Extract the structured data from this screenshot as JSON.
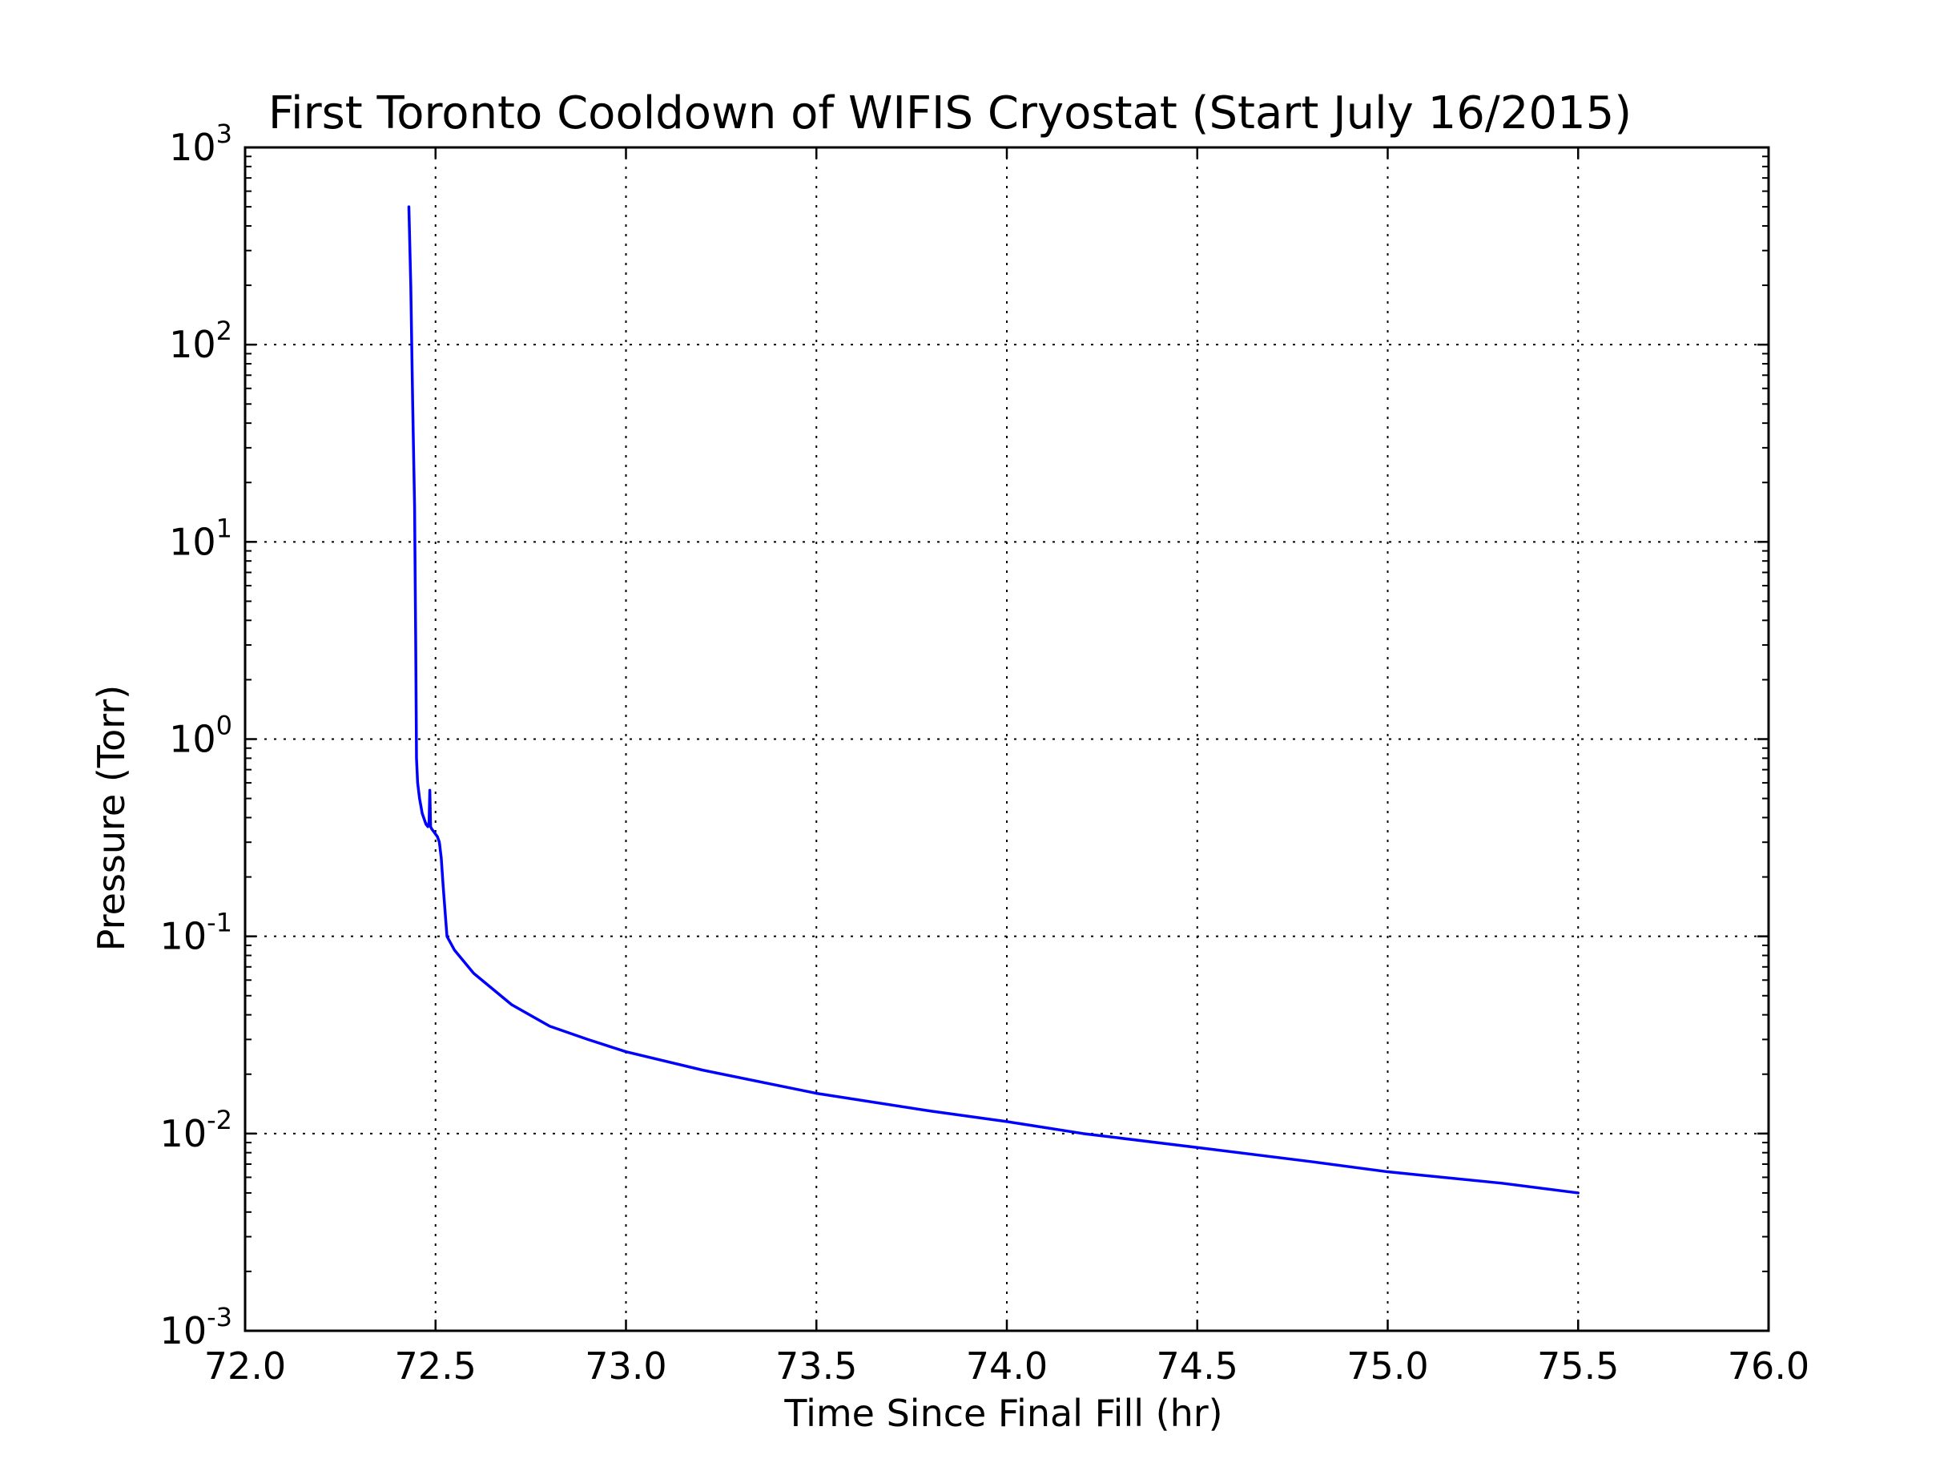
{
  "chart_data": {
    "type": "line",
    "title": "First Toronto Cooldown of WIFIS Cryostat (Start July 16/2015)",
    "xlabel": "Time Since Final Fill (hr)",
    "ylabel": "Pressure (Torr)",
    "xlim": [
      72.0,
      76.0
    ],
    "ylim": [
      0.001,
      1000
    ],
    "yscale": "log",
    "grid": true,
    "x_ticks": [
      "72.0",
      "72.5",
      "73.0",
      "73.5",
      "74.0",
      "74.5",
      "75.0",
      "75.5",
      "76.0"
    ],
    "y_ticks": [
      {
        "base": "10",
        "exp": "-3"
      },
      {
        "base": "10",
        "exp": "-2"
      },
      {
        "base": "10",
        "exp": "-1"
      },
      {
        "base": "10",
        "exp": "0"
      },
      {
        "base": "10",
        "exp": "1"
      },
      {
        "base": "10",
        "exp": "2"
      },
      {
        "base": "10",
        "exp": "3"
      }
    ],
    "colors": {
      "series": "#0000ff",
      "axes": "#000000",
      "grid": "#000000",
      "background": "#ffffff"
    },
    "series": [
      {
        "x": [
          72.43,
          72.435,
          72.44,
          72.445,
          72.448,
          72.45,
          72.453,
          72.458,
          72.465,
          72.475,
          72.48,
          72.483,
          72.485,
          72.487,
          72.49,
          72.495,
          72.5,
          72.505,
          72.51,
          72.515,
          72.52,
          72.53,
          72.55,
          72.6,
          72.7,
          72.8,
          72.9,
          73.0,
          73.2,
          73.5,
          73.8,
          74.0,
          74.2,
          74.5,
          74.8,
          75.0,
          75.3,
          75.5
        ],
        "y": [
          500,
          200,
          50,
          15,
          3,
          0.8,
          0.6,
          0.5,
          0.42,
          0.37,
          0.36,
          0.38,
          0.55,
          0.36,
          0.35,
          0.34,
          0.33,
          0.32,
          0.3,
          0.25,
          0.18,
          0.1,
          0.085,
          0.065,
          0.045,
          0.035,
          0.03,
          0.026,
          0.021,
          0.016,
          0.013,
          0.0115,
          0.01,
          0.0085,
          0.0072,
          0.0064,
          0.0056,
          0.005
        ]
      }
    ]
  }
}
